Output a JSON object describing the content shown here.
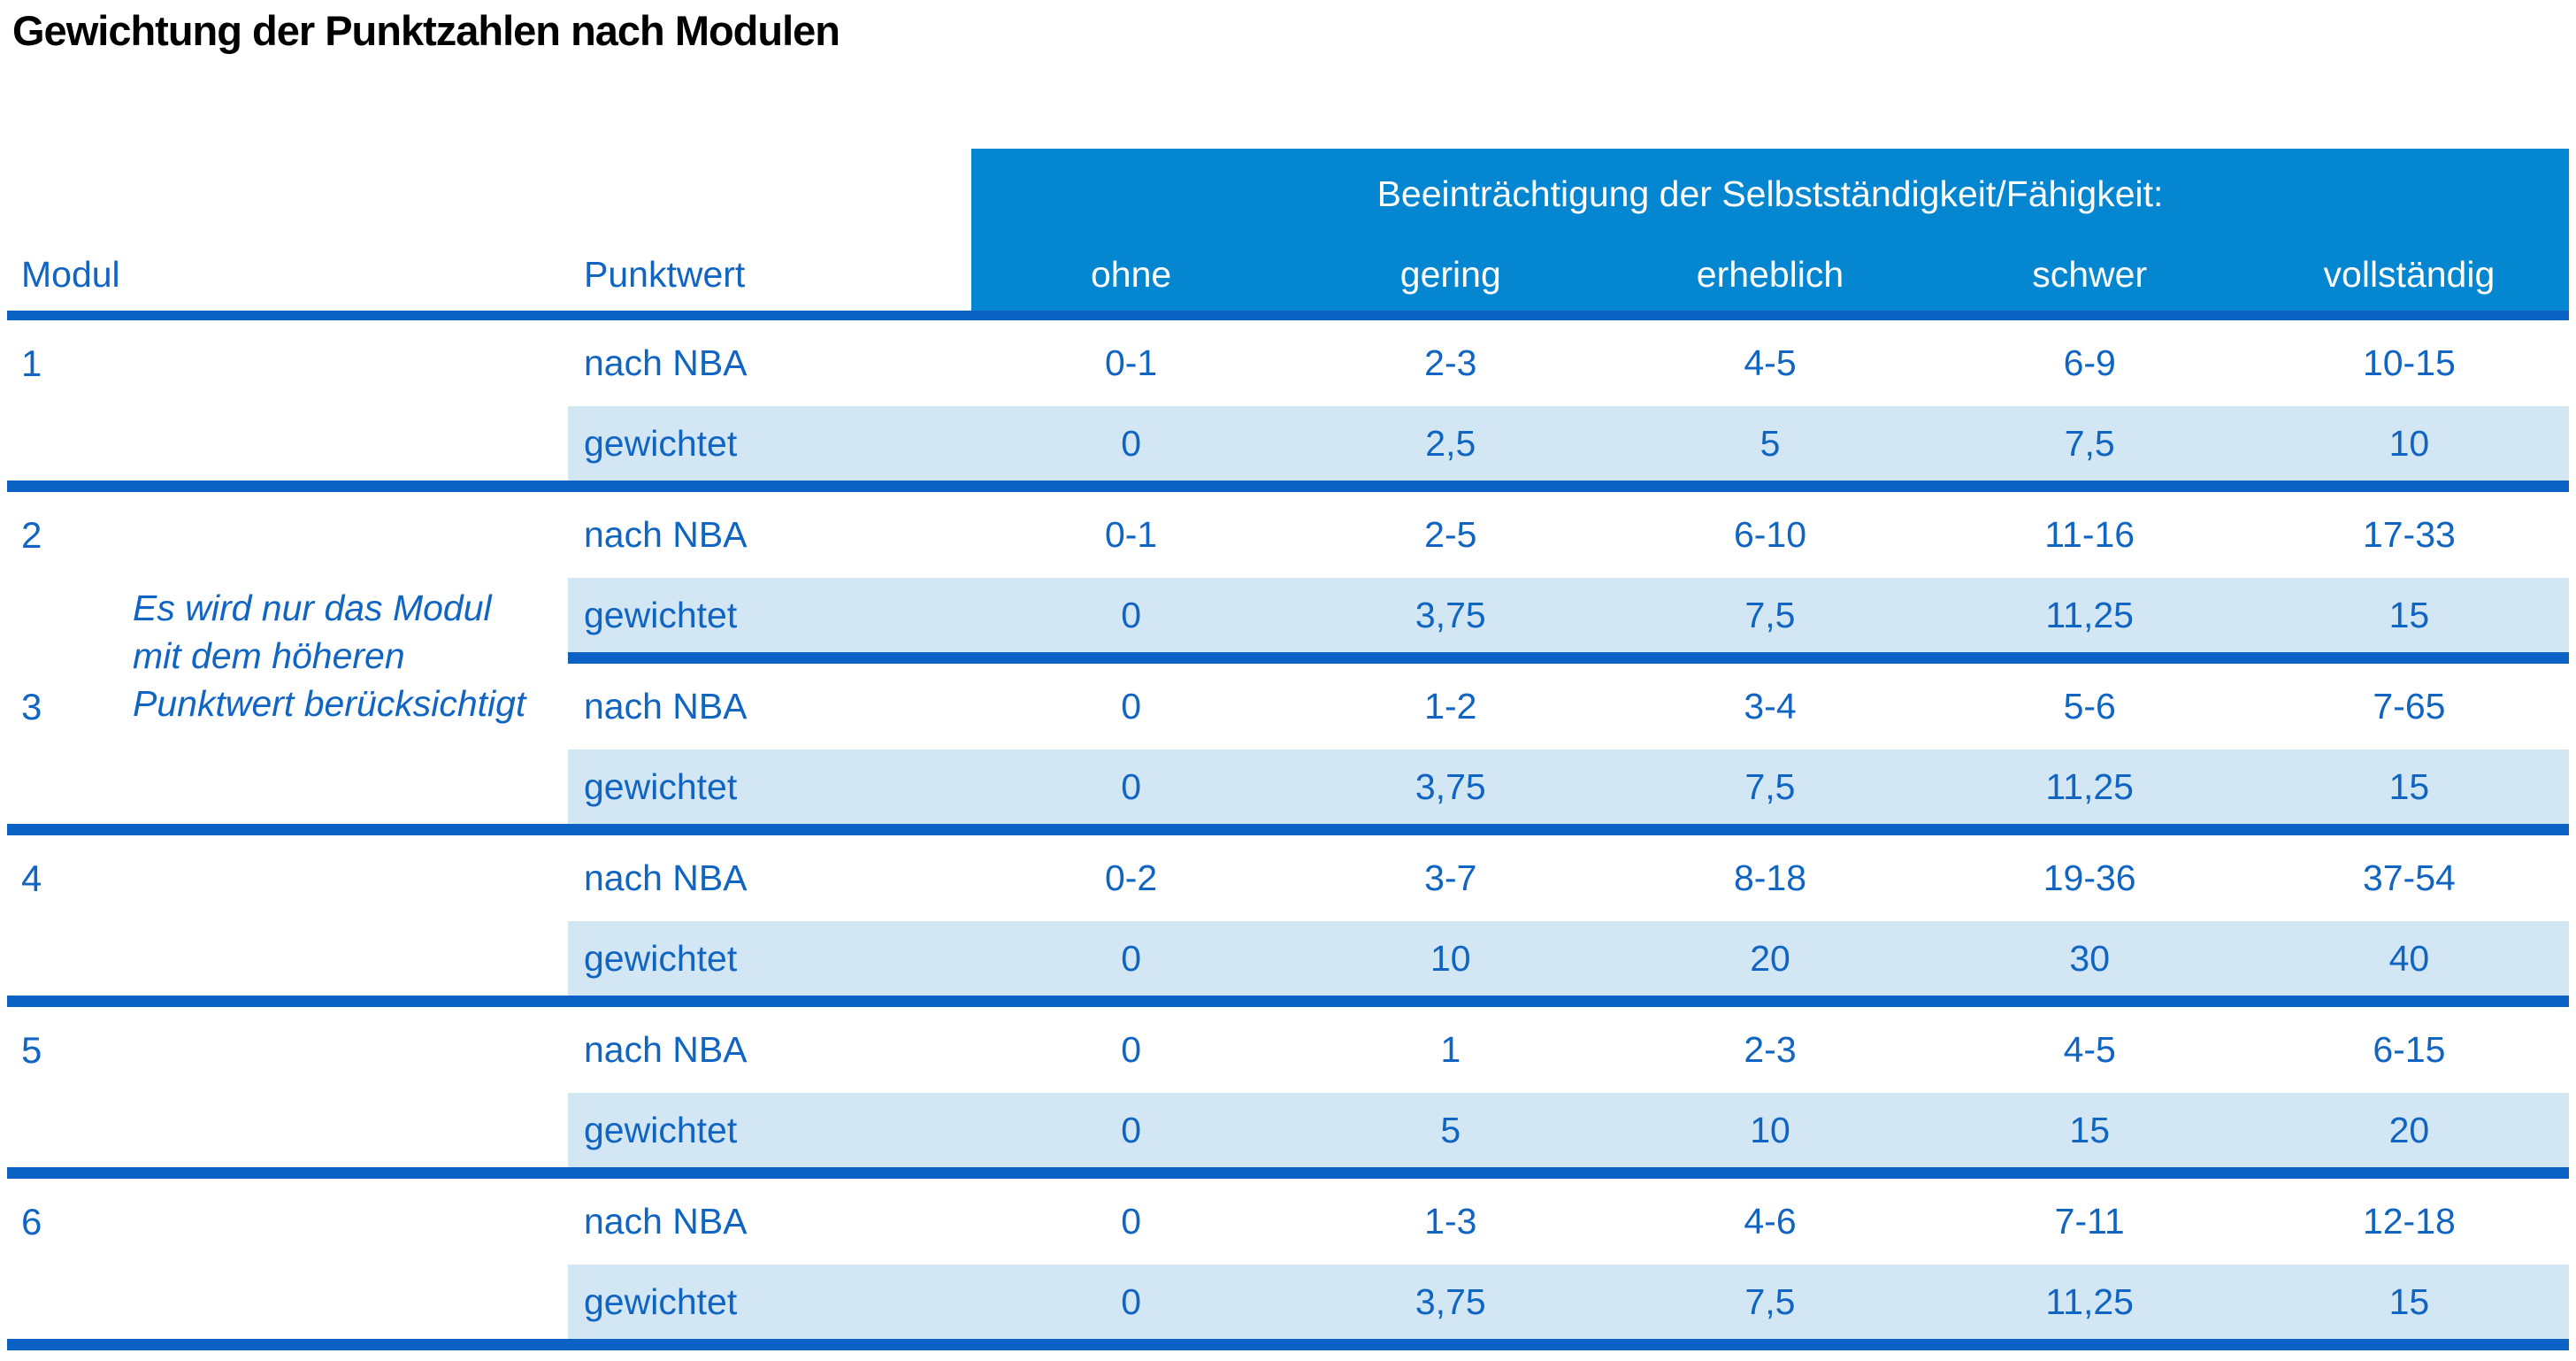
{
  "title": "Gewichtung der Punktzahlen nach Modulen",
  "colors": {
    "header_bar": "#0486d1",
    "separator_line": "#0b61c4",
    "weighted_row_band": "#d3e6f3",
    "table_text": "#1165c2",
    "title_text": "#000000"
  },
  "header": {
    "col_modul": "Modul",
    "col_punktwert": "Punktwert",
    "span_label": "Beeinträchtigung der Selbstständigkeit/Fähigkeit:",
    "severity_levels": [
      "ohne",
      "gering",
      "erheblich",
      "schwer",
      "vollständig"
    ]
  },
  "row_labels": {
    "nba": "nach NBA",
    "weighted": "gewichtet"
  },
  "note": "Es wird nur das Modul\nmit dem höheren\nPunktwert berücksichtigt",
  "modules": [
    {
      "id": "1",
      "nba": [
        "0-1",
        "2-3",
        "4-5",
        "6-9",
        "10-15"
      ],
      "weighted": [
        "0",
        "2,5",
        "5",
        "7,5",
        "10"
      ]
    },
    {
      "id": "2",
      "nba": [
        "0-1",
        "2-5",
        "6-10",
        "11-16",
        "17-33"
      ],
      "weighted": [
        "0",
        "3,75",
        "7,5",
        "11,25",
        "15"
      ]
    },
    {
      "id": "3",
      "nba": [
        "0",
        "1-2",
        "3-4",
        "5-6",
        "7-65"
      ],
      "weighted": [
        "0",
        "3,75",
        "7,5",
        "11,25",
        "15"
      ]
    },
    {
      "id": "4",
      "nba": [
        "0-2",
        "3-7",
        "8-18",
        "19-36",
        "37-54"
      ],
      "weighted": [
        "0",
        "10",
        "20",
        "30",
        "40"
      ]
    },
    {
      "id": "5",
      "nba": [
        "0",
        "1",
        "2-3",
        "4-5",
        "6-15"
      ],
      "weighted": [
        "0",
        "5",
        "10",
        "15",
        "20"
      ]
    },
    {
      "id": "6",
      "nba": [
        "0",
        "1-3",
        "4-6",
        "7-11",
        "12-18"
      ],
      "weighted": [
        "0",
        "3,75",
        "7,5",
        "11,25",
        "15"
      ]
    }
  ]
}
